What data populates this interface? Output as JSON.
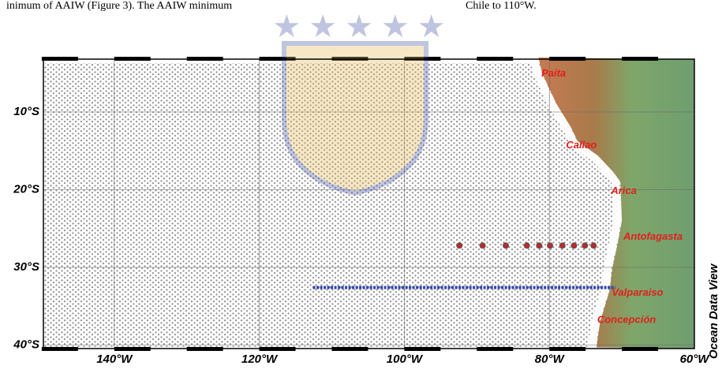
{
  "header": {
    "left": "inimum of AAIW (Figure 3). The AAIW minimum",
    "right": "Chile to 110°W."
  },
  "map": {
    "lon_ticks": [
      {
        "value": 140,
        "label": "140°W"
      },
      {
        "value": 120,
        "label": "120°W"
      },
      {
        "value": 100,
        "label": "100°W"
      },
      {
        "value": 80,
        "label": "80°W"
      },
      {
        "value": 60,
        "label": "60°W"
      }
    ],
    "lat_ticks": [
      {
        "value": 10,
        "label": "10°S"
      },
      {
        "value": 20,
        "label": "20°S"
      },
      {
        "value": 30,
        "label": "30°S"
      },
      {
        "value": 40,
        "label": "40°S"
      }
    ],
    "places": [
      {
        "name": "Paita",
        "lon": 81.1,
        "lat": 5.1
      },
      {
        "name": "Callao",
        "lon": 77.7,
        "lat": 14.3
      },
      {
        "name": "Arica",
        "lon": 71.5,
        "lat": 20.2
      },
      {
        "name": "Antofagasta",
        "lon": 69.8,
        "lat": 26.1
      },
      {
        "name": "Valparaiso",
        "lon": 71.4,
        "lat": 33.3
      },
      {
        "name": "Concepción",
        "lon": 73.4,
        "lat": 36.8
      }
    ],
    "red_stations": {
      "lat": 27.2,
      "lons": [
        92.4,
        89.2,
        86,
        83.1,
        81.4,
        79.9,
        78.2,
        76.6,
        75.1,
        73.9
      ]
    },
    "blue_section": {
      "lat": 32.6,
      "lon_start": 112.6,
      "lon_end": 70.9
    },
    "credit": "Ocean Data View"
  }
}
